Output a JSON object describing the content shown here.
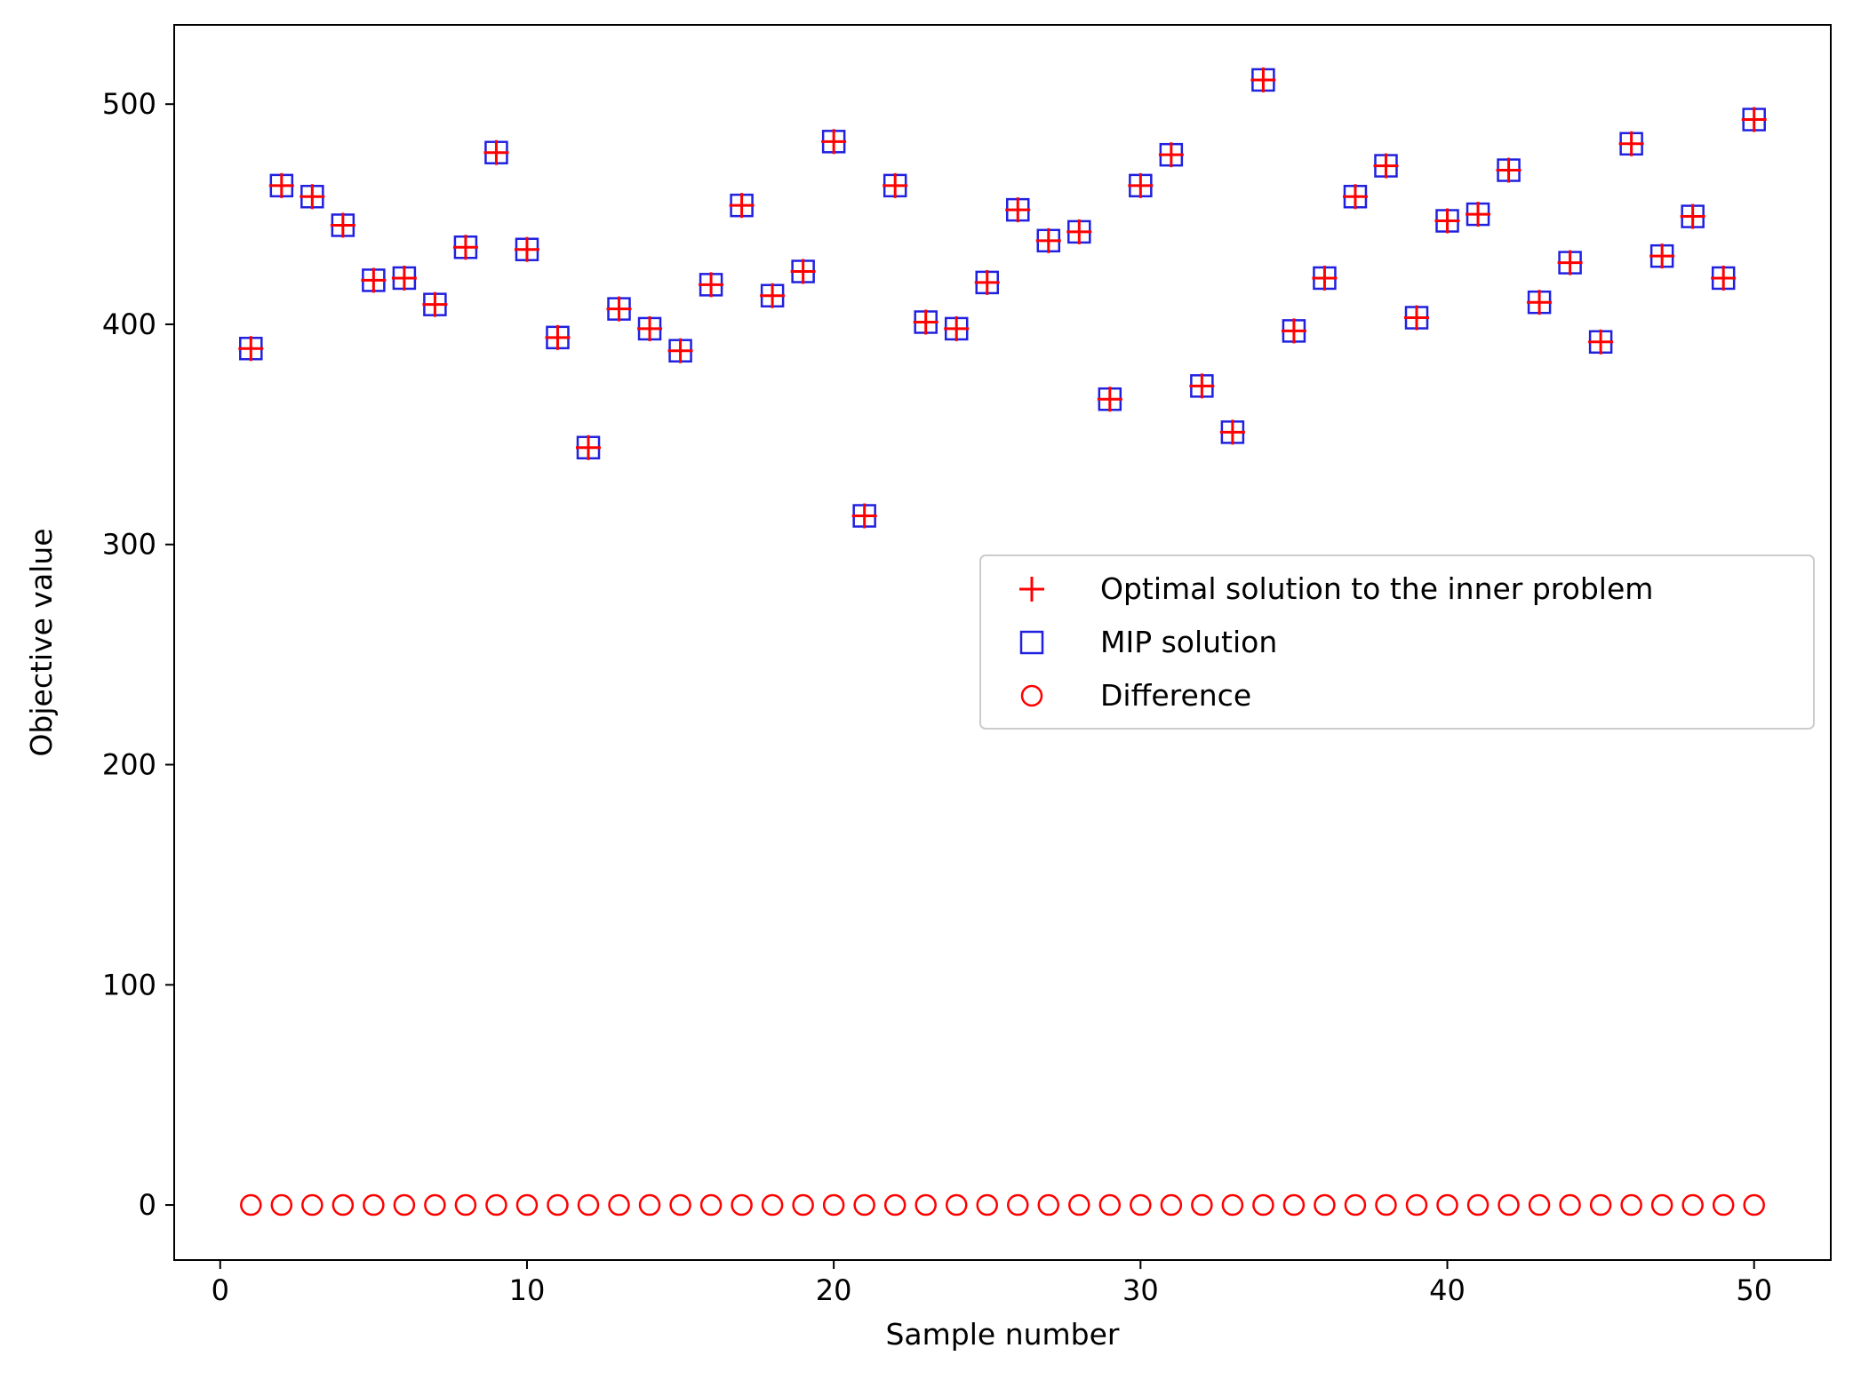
{
  "chart_data": {
    "type": "scatter",
    "xlabel": "Sample number",
    "ylabel": "Objective value",
    "xlim": [
      -1.5,
      52.5
    ],
    "ylim": [
      -25,
      536
    ],
    "x_ticks": [
      0,
      10,
      20,
      30,
      40,
      50
    ],
    "y_ticks": [
      0,
      100,
      200,
      300,
      400,
      500
    ],
    "grid": false,
    "legend_position": "center-right",
    "x": [
      1,
      2,
      3,
      4,
      5,
      6,
      7,
      8,
      9,
      10,
      11,
      12,
      13,
      14,
      15,
      16,
      17,
      18,
      19,
      20,
      21,
      22,
      23,
      24,
      25,
      26,
      27,
      28,
      29,
      30,
      31,
      32,
      33,
      34,
      35,
      36,
      37,
      38,
      39,
      40,
      41,
      42,
      43,
      44,
      45,
      46,
      47,
      48,
      49,
      50
    ],
    "series": [
      {
        "name": "Optimal solution to the inner problem",
        "marker": "plus",
        "color": "#ff0000",
        "values": [
          389,
          463,
          458,
          445,
          420,
          421,
          409,
          435,
          478,
          434,
          394,
          344,
          407,
          398,
          388,
          418,
          454,
          413,
          424,
          483,
          313,
          463,
          401,
          398,
          419,
          452,
          438,
          442,
          366,
          463,
          477,
          372,
          351,
          511,
          397,
          421,
          458,
          472,
          403,
          447,
          450,
          470,
          410,
          428,
          392,
          482,
          431,
          449,
          421,
          493
        ]
      },
      {
        "name": "MIP solution",
        "marker": "square",
        "color": "#2020e0",
        "values": [
          389,
          463,
          458,
          445,
          420,
          421,
          409,
          435,
          478,
          434,
          394,
          344,
          407,
          398,
          388,
          418,
          454,
          413,
          424,
          483,
          313,
          463,
          401,
          398,
          419,
          452,
          438,
          442,
          366,
          463,
          477,
          372,
          351,
          511,
          397,
          421,
          458,
          472,
          403,
          447,
          450,
          470,
          410,
          428,
          392,
          482,
          431,
          449,
          421,
          493
        ]
      },
      {
        "name": "Difference",
        "marker": "circle",
        "color": "#ff0000",
        "values": [
          0,
          0,
          0,
          0,
          0,
          0,
          0,
          0,
          0,
          0,
          0,
          0,
          0,
          0,
          0,
          0,
          0,
          0,
          0,
          0,
          0,
          0,
          0,
          0,
          0,
          0,
          0,
          0,
          0,
          0,
          0,
          0,
          0,
          0,
          0,
          0,
          0,
          0,
          0,
          0,
          0,
          0,
          0,
          0,
          0,
          0,
          0,
          0,
          0,
          0
        ]
      }
    ]
  }
}
